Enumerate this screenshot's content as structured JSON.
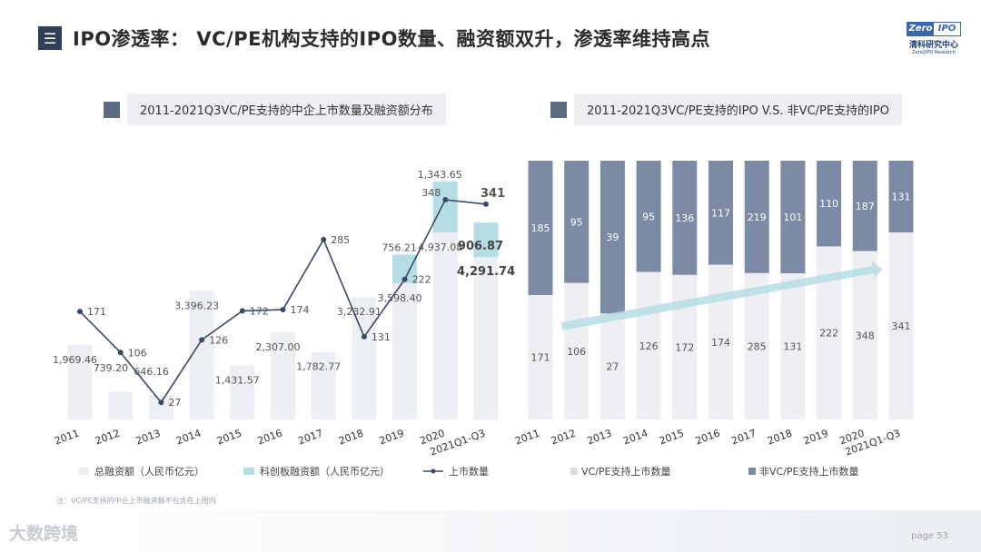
{
  "header": {
    "title": "IPO渗透率： VC/PE机构支持的IPO数量、融资额双升，渗透率维持高点",
    "menu_icon": "menu-icon"
  },
  "logo": {
    "left": "Zero",
    "right": "IPO",
    "cn": "清科研究中心",
    "en": "Zero2IPO Research"
  },
  "chart_data": [
    {
      "type": "bar+line",
      "title": "2011-2021Q3VC/PE支持的中企上市数量及融资额分布",
      "categories": [
        "2011",
        "2012",
        "2013",
        "2014",
        "2015",
        "2016",
        "2017",
        "2018",
        "2019",
        "2020",
        "2021Q1-Q3"
      ],
      "series": [
        {
          "name": "总融资额（人民币亿元）",
          "kind": "bar",
          "values": [
            1969.46,
            739.2,
            646.16,
            3396.23,
            1431.57,
            2307.0,
            1782.77,
            3232.91,
            3598.4,
            4937.08,
            4291.74
          ],
          "labels": [
            "1,969.46",
            "739.20",
            "646.16",
            "3,396.23",
            "1,431.57",
            "2,307.00",
            "1,782.77",
            "3,232.91",
            "3,598.40",
            "4,937.08",
            "4,291.74"
          ]
        },
        {
          "name": "科创板融资额（人民币亿元）",
          "kind": "bar-stacked",
          "values": [
            null,
            null,
            null,
            null,
            null,
            null,
            null,
            null,
            756.21,
            1343.65,
            906.87
          ],
          "labels": [
            "",
            "",
            "",
            "",
            "",
            "",
            "",
            "",
            "756.21",
            "1,343.65",
            "906.87"
          ]
        },
        {
          "name": "上市数量",
          "kind": "line",
          "values": [
            171,
            106,
            27,
            126,
            172,
            174,
            285,
            131,
            222,
            348,
            341
          ],
          "labels": [
            "171",
            "106",
            "27",
            "126",
            "172",
            "174",
            "285",
            "131",
            "222",
            "348",
            "341"
          ]
        }
      ],
      "ylim_bars": [
        0,
        7000
      ],
      "ylim_line": [
        0,
        420
      ],
      "colors": {
        "total": "#eceff3",
        "star": "#b5dde4",
        "line": "#3a4a63"
      }
    },
    {
      "type": "stacked-bar-100",
      "title": "2011-2021Q3VC/PE支持的IPO V.S. 非VC/PE支持的IPO",
      "categories": [
        "2011",
        "2012",
        "2013",
        "2014",
        "2015",
        "2016",
        "2017",
        "2018",
        "2019",
        "2020",
        "2021Q1-Q3"
      ],
      "series": [
        {
          "name": "VC/PE支持上市数量",
          "values": [
            171,
            106,
            27,
            126,
            172,
            174,
            285,
            131,
            222,
            348,
            341
          ]
        },
        {
          "name": "非VC/PE支持上市数量",
          "values": [
            185,
            95,
            39,
            95,
            136,
            117,
            219,
            101,
            110,
            187,
            131
          ]
        }
      ],
      "colors": {
        "vc": "#edeff2",
        "non": "#7c8aa6",
        "arrow": "#b5dde4"
      }
    }
  ],
  "footnote": "注：VC/PE支持的中企上市融资额不包含在上图内",
  "watermark": "大数跨境",
  "page": {
    "label": "page",
    "number": "53"
  }
}
